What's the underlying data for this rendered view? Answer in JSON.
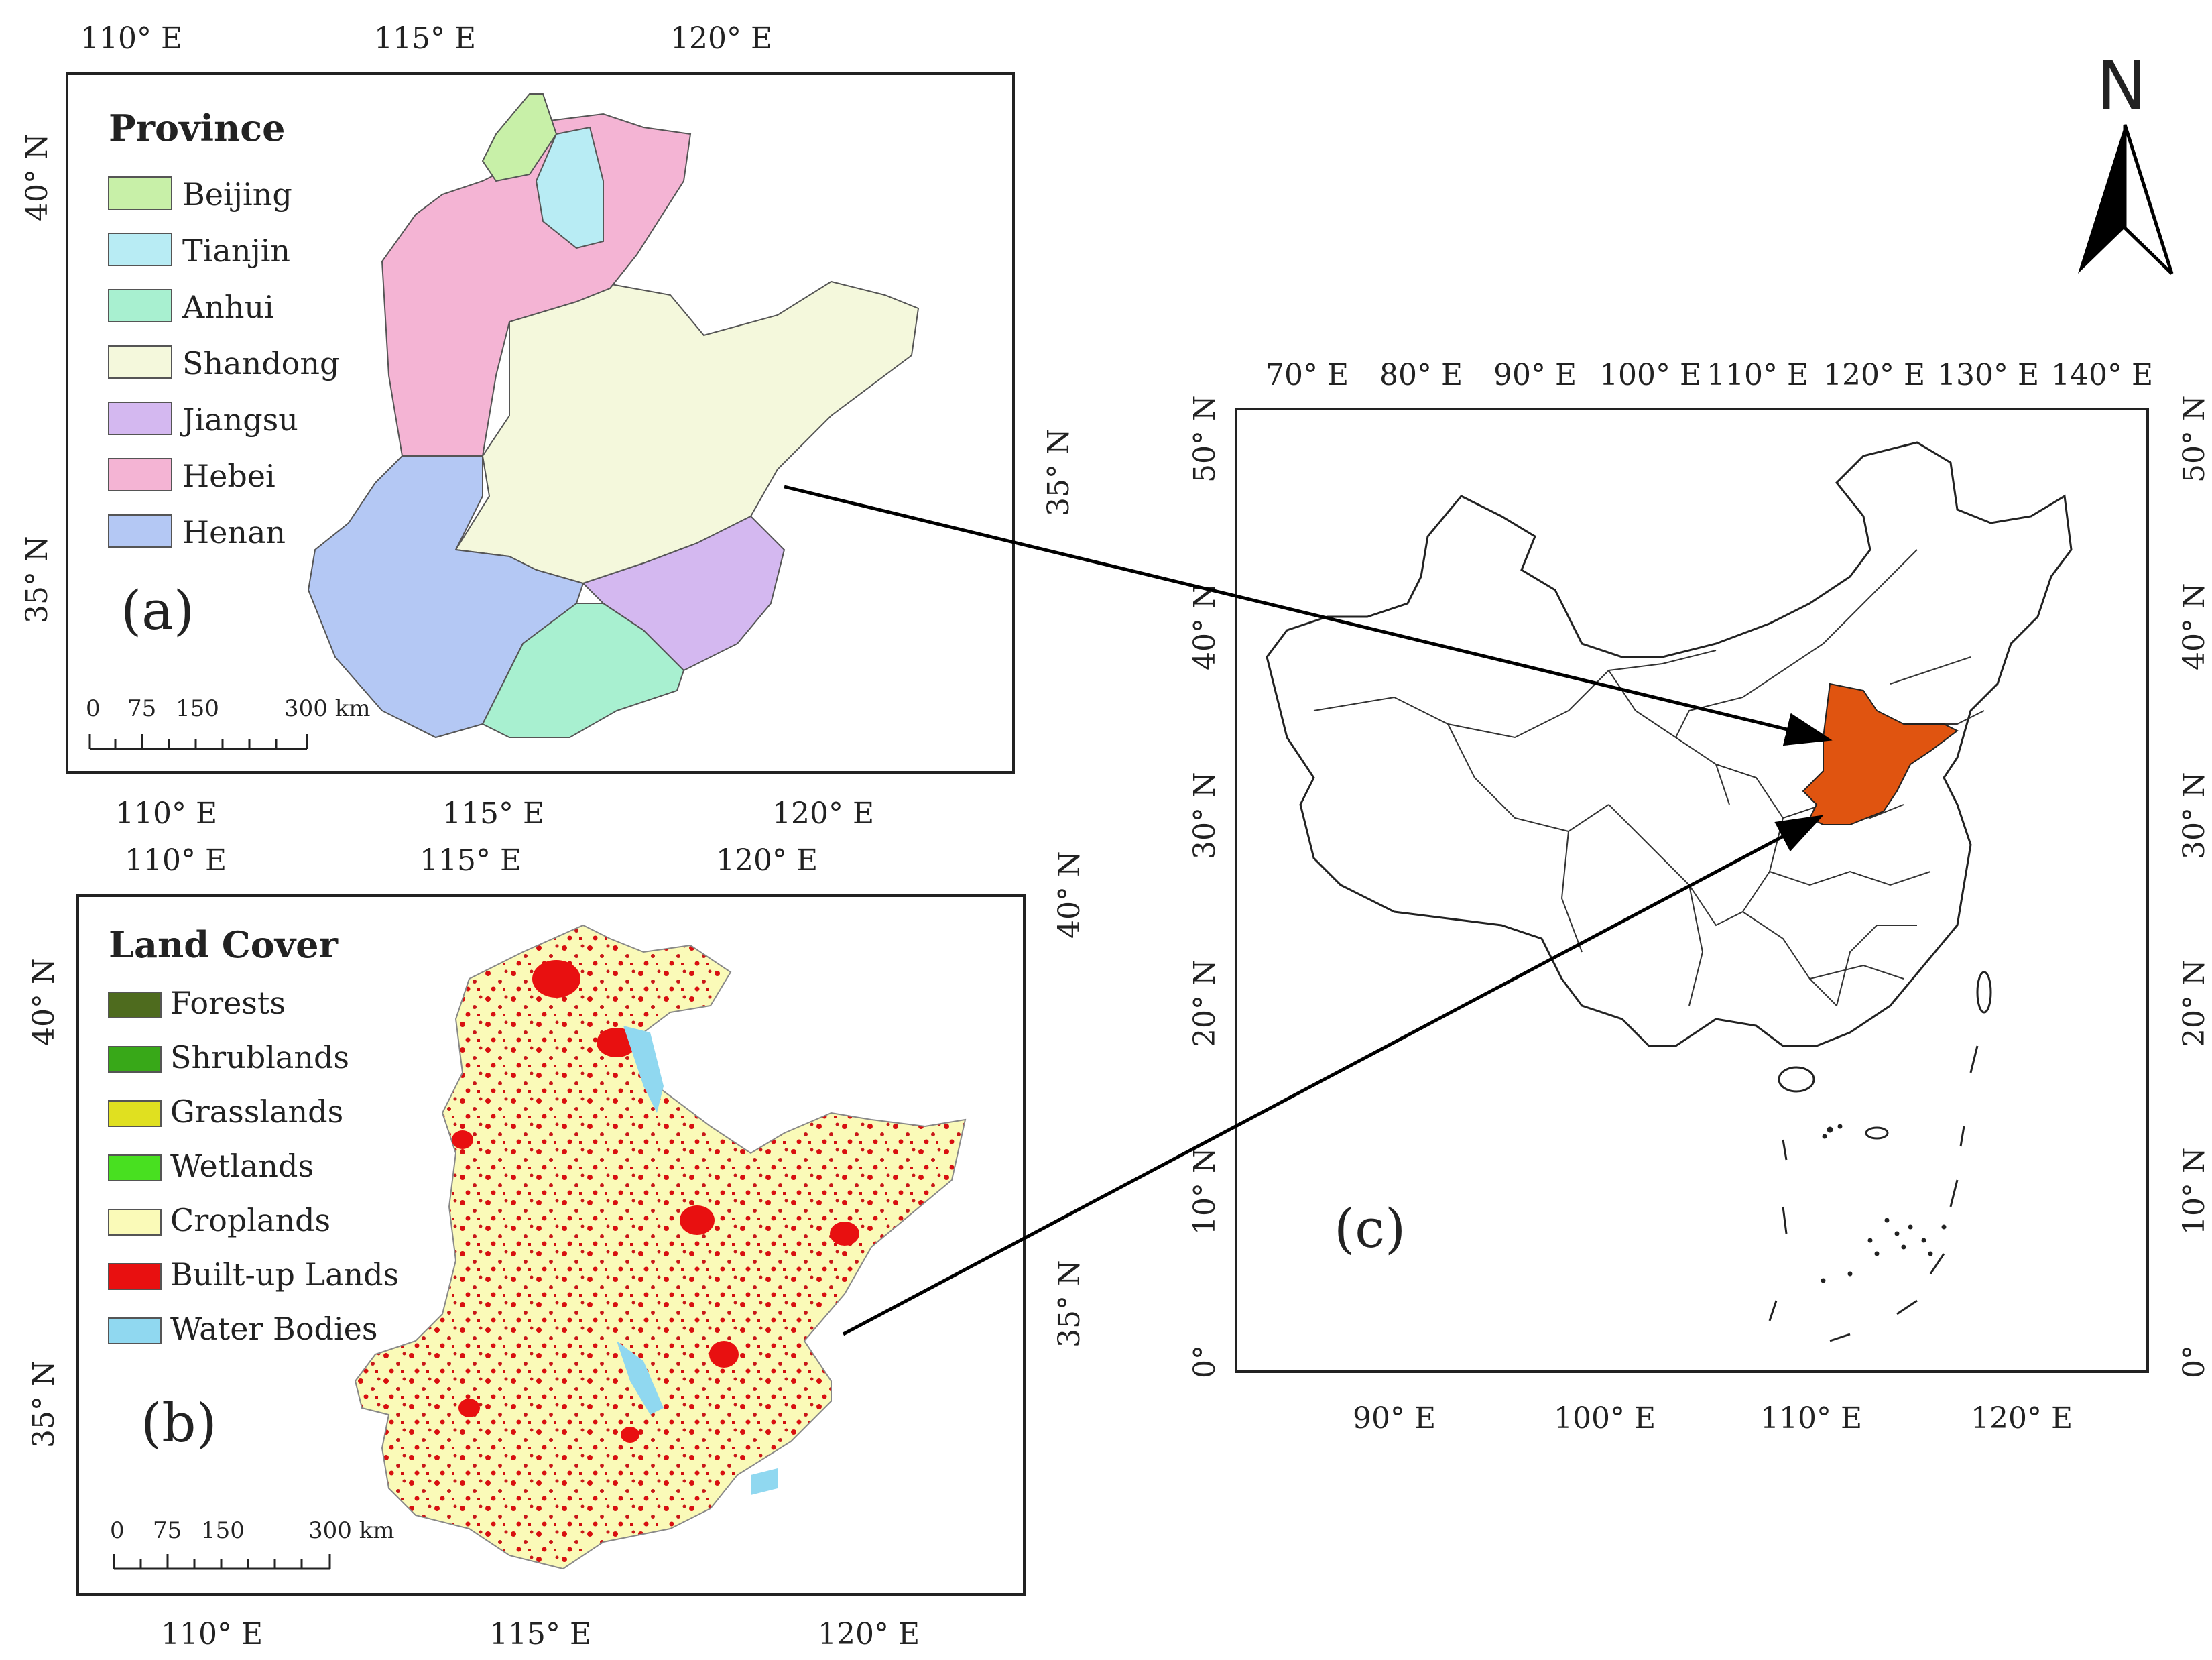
{
  "panel_a": {
    "label": "(a)",
    "legend_title": "Province",
    "legend": [
      {
        "name": "Beijing",
        "color": "#c8f0a8"
      },
      {
        "name": "Tianjin",
        "color": "#b8ecf4"
      },
      {
        "name": "Anhui",
        "color": "#a8f0d0"
      },
      {
        "name": "Shandong",
        "color": "#f4f8dc"
      },
      {
        "name": "Jiangsu",
        "color": "#d4b8f0"
      },
      {
        "name": "Hebei",
        "color": "#f4b4d4"
      },
      {
        "name": "Henan",
        "color": "#b4c8f4"
      }
    ],
    "top_ticks": [
      "110° E",
      "115° E",
      "120° E"
    ],
    "bottom_ticks": [
      "110° E",
      "115° E",
      "120° E"
    ],
    "left_ticks": [
      "40° N",
      "35° N"
    ],
    "right_ticks": [
      "35° N"
    ],
    "scale_labels": [
      "0",
      "75",
      "150",
      "300 km"
    ]
  },
  "panel_b": {
    "label": "(b)",
    "legend_title": "Land Cover",
    "legend": [
      {
        "name": "Forests",
        "color": "#4e6b1e"
      },
      {
        "name": "Shrublands",
        "color": "#38a818"
      },
      {
        "name": "Grasslands",
        "color": "#e0e020"
      },
      {
        "name": "Wetlands",
        "color": "#48e020"
      },
      {
        "name": "Croplands",
        "color": "#fafab8"
      },
      {
        "name": "Built-up Lands",
        "color": "#e81010"
      },
      {
        "name": "Water Bodies",
        "color": "#90d8f0"
      }
    ],
    "top_ticks": [
      "110° E",
      "115° E",
      "120° E"
    ],
    "bottom_ticks": [
      "110° E",
      "115° E",
      "120° E"
    ],
    "left_ticks": [
      "40° N",
      "35° N"
    ],
    "right_ticks": [
      "40° N",
      "35° N"
    ],
    "scale_labels": [
      "0",
      "75",
      "150",
      "300 km"
    ]
  },
  "panel_c": {
    "label": "(c)",
    "highlight_color": "#e05410",
    "top_ticks": [
      "70° E",
      "80° E",
      "90° E",
      "100° E",
      "110° E",
      "120° E",
      "130° E",
      "140° E"
    ],
    "bottom_ticks": [
      "90° E",
      "100° E",
      "110° E",
      "120° E"
    ],
    "left_ticks": [
      "50° N",
      "40° N",
      "30° N",
      "20° N",
      "10° N",
      "0°"
    ],
    "right_ticks": [
      "50° N",
      "40° N",
      "30° N",
      "20° N",
      "10° N",
      "0°"
    ]
  },
  "north_arrow": {
    "label": "N"
  }
}
